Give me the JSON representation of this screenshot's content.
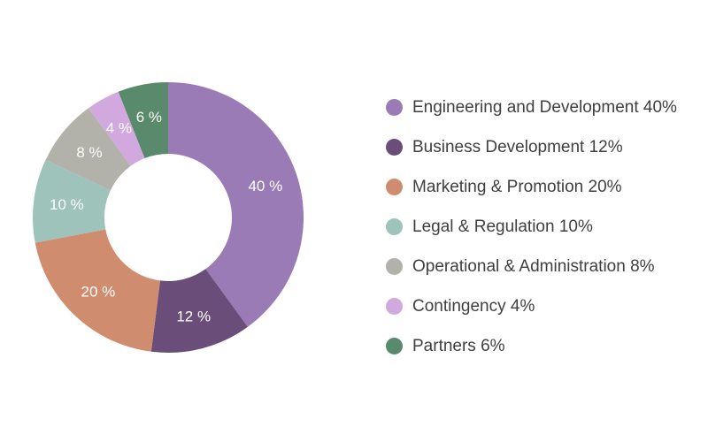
{
  "chart_data": {
    "type": "pie",
    "donut": true,
    "categories": [
      "Engineering and Development",
      "Business Development",
      "Marketing & Promotion",
      "Legal & Regulation",
      "Operational & Administration",
      "Contingency",
      "Partners"
    ],
    "values": [
      40,
      12,
      20,
      10,
      8,
      4,
      6
    ],
    "slice_labels": [
      "40 %",
      "12 %",
      "20 %",
      "10 %",
      "8 %",
      "4 %",
      "6 %"
    ],
    "colors": [
      "#9a7bb5",
      "#6a4d78",
      "#cf8c6f",
      "#9dc3bb",
      "#b3b2aa",
      "#d2a9de",
      "#5a8a6c"
    ],
    "legend_position": "right",
    "legend": [
      "Engineering and Development 40%",
      "Business Development 12%",
      "Marketing & Promotion 20%",
      "Legal & Regulation 10%",
      "Operational & Administration 8%",
      "Contingency 4%",
      "Partners 6%"
    ]
  }
}
